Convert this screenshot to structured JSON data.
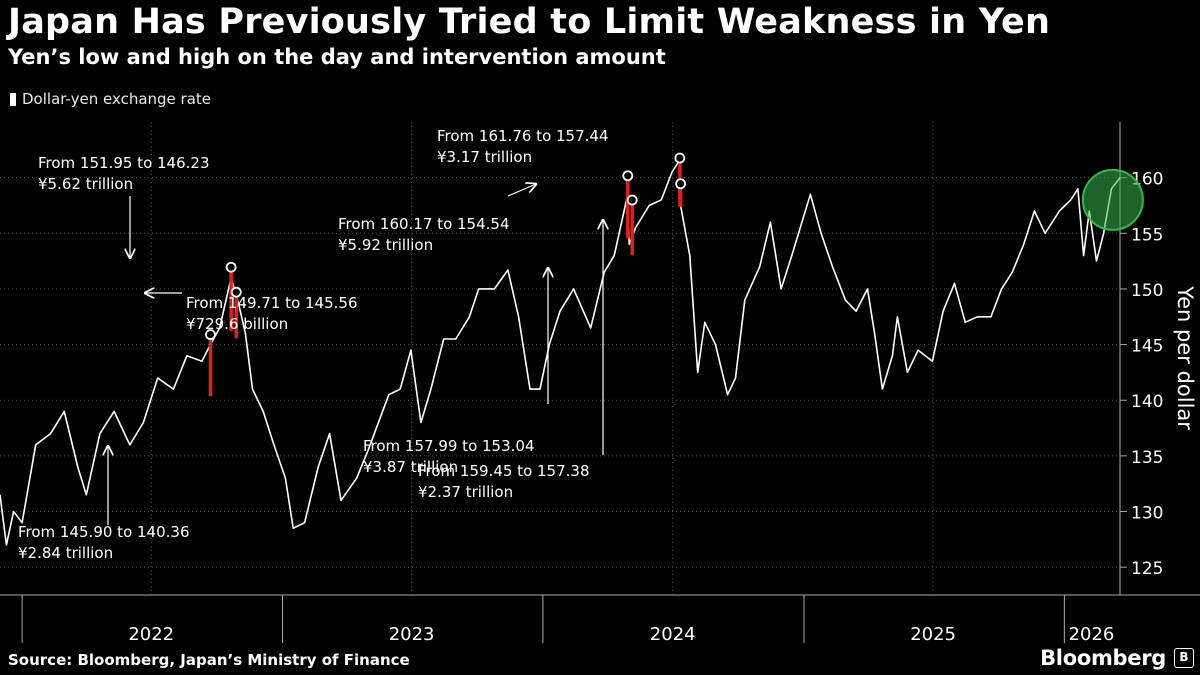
{
  "title": "Japan Has Previously Tried to Limit Weakness in Yen",
  "subtitle": "Yen’s low and high on the day and intervention amount",
  "legend": {
    "label": "Dollar-yen exchange rate",
    "color": "#ffffff"
  },
  "source": "Source: Bloomberg, Japan’s Ministry of Finance",
  "brand": "Bloomberg",
  "colors": {
    "background": "#000000",
    "line": "#ffffff",
    "intervention": "#e0201b",
    "grid": "#555555",
    "highlight": "#39b54a"
  },
  "chart_data": {
    "type": "line",
    "title": "Japan Has Previously Tried to Limit Weakness in Yen",
    "subtitle": "Yen’s low and high on the day and intervention amount",
    "ylabel": "Yen per dollar",
    "ylim": [
      122.5,
      165
    ],
    "y_ticks": [
      125,
      130,
      135,
      140,
      145,
      150,
      155,
      160
    ],
    "y_axis_position": "right",
    "x_range": [
      "2021-12-01",
      "2026-03-20"
    ],
    "x_ticks": [
      "2022",
      "2023",
      "2024",
      "2025",
      "2026"
    ],
    "grid": true,
    "legend_position": "top-left",
    "series": [
      {
        "name": "Dollar-yen exchange rate",
        "points": [
          [
            "2021-12-01",
            131.5
          ],
          [
            "2021-12-10",
            127
          ],
          [
            "2021-12-20",
            130
          ],
          [
            "2022-01-01",
            129
          ],
          [
            "2022-01-20",
            136
          ],
          [
            "2022-02-10",
            137
          ],
          [
            "2022-03-01",
            139
          ],
          [
            "2022-03-20",
            134
          ],
          [
            "2022-04-01",
            131.5
          ],
          [
            "2022-04-20",
            137
          ],
          [
            "2022-05-10",
            139
          ],
          [
            "2022-06-01",
            136
          ],
          [
            "2022-06-20",
            138
          ],
          [
            "2022-07-10",
            142
          ],
          [
            "2022-08-01",
            141
          ],
          [
            "2022-08-20",
            144
          ],
          [
            "2022-09-10",
            143.5
          ],
          [
            "2022-09-22",
            145
          ],
          [
            "2022-10-05",
            146.5
          ],
          [
            "2022-10-21",
            151
          ],
          [
            "2022-11-01",
            148.5
          ],
          [
            "2022-11-10",
            146
          ],
          [
            "2022-11-20",
            141
          ],
          [
            "2022-12-05",
            139
          ],
          [
            "2022-12-20",
            136
          ],
          [
            "2023-01-05",
            133
          ],
          [
            "2023-01-16",
            128.5
          ],
          [
            "2023-02-01",
            129
          ],
          [
            "2023-02-20",
            134
          ],
          [
            "2023-03-08",
            137
          ],
          [
            "2023-03-24",
            131
          ],
          [
            "2023-04-15",
            133
          ],
          [
            "2023-05-01",
            135.5
          ],
          [
            "2023-05-30",
            140.5
          ],
          [
            "2023-06-15",
            141
          ],
          [
            "2023-06-30",
            144.5
          ],
          [
            "2023-07-14",
            138
          ],
          [
            "2023-07-28",
            141
          ],
          [
            "2023-08-15",
            145.5
          ],
          [
            "2023-09-01",
            145.5
          ],
          [
            "2023-09-20",
            147.5
          ],
          [
            "2023-10-03",
            150
          ],
          [
            "2023-10-25",
            150
          ],
          [
            "2023-11-13",
            151.7
          ],
          [
            "2023-11-28",
            147.5
          ],
          [
            "2023-12-14",
            141
          ],
          [
            "2023-12-28",
            141
          ],
          [
            "2024-01-10",
            145
          ],
          [
            "2024-01-25",
            148
          ],
          [
            "2024-02-13",
            150
          ],
          [
            "2024-03-08",
            146.5
          ],
          [
            "2024-03-27",
            151.5
          ],
          [
            "2024-04-10",
            153
          ],
          [
            "2024-04-29",
            158.5
          ],
          [
            "2024-05-01",
            154
          ],
          [
            "2024-05-10",
            155.5
          ],
          [
            "2024-05-29",
            157.5
          ],
          [
            "2024-06-15",
            158
          ],
          [
            "2024-06-30",
            160.5
          ],
          [
            "2024-07-10",
            161.5
          ],
          [
            "2024-07-11",
            159
          ],
          [
            "2024-07-12",
            157.5
          ],
          [
            "2024-07-25",
            153
          ],
          [
            "2024-08-05",
            142.5
          ],
          [
            "2024-08-15",
            147
          ],
          [
            "2024-08-30",
            145
          ],
          [
            "2024-09-16",
            140.5
          ],
          [
            "2024-09-27",
            142
          ],
          [
            "2024-10-10",
            149
          ],
          [
            "2024-10-31",
            152
          ],
          [
            "2024-11-15",
            156
          ],
          [
            "2024-11-30",
            150
          ],
          [
            "2024-12-15",
            153
          ],
          [
            "2025-01-10",
            158.5
          ],
          [
            "2025-01-25",
            155
          ],
          [
            "2025-02-10",
            152
          ],
          [
            "2025-02-28",
            149
          ],
          [
            "2025-03-15",
            148
          ],
          [
            "2025-03-31",
            150
          ],
          [
            "2025-04-10",
            146
          ],
          [
            "2025-04-21",
            141
          ],
          [
            "2025-05-05",
            144
          ],
          [
            "2025-05-12",
            147.5
          ],
          [
            "2025-05-26",
            142.5
          ],
          [
            "2025-06-10",
            144.5
          ],
          [
            "2025-06-30",
            143.5
          ],
          [
            "2025-07-15",
            148
          ],
          [
            "2025-07-31",
            150.5
          ],
          [
            "2025-08-15",
            147
          ],
          [
            "2025-09-01",
            147.5
          ],
          [
            "2025-09-20",
            147.5
          ],
          [
            "2025-10-05",
            150
          ],
          [
            "2025-10-20",
            151.5
          ],
          [
            "2025-11-05",
            154
          ],
          [
            "2025-11-20",
            157
          ],
          [
            "2025-12-05",
            155
          ],
          [
            "2025-12-25",
            157
          ],
          [
            "2026-01-10",
            158
          ],
          [
            "2026-01-20",
            159
          ],
          [
            "2026-01-28",
            153
          ],
          [
            "2026-02-05",
            157
          ],
          [
            "2026-02-15",
            152.5
          ],
          [
            "2026-02-25",
            155
          ],
          [
            "2026-03-08",
            159
          ],
          [
            "2026-03-20",
            160
          ]
        ]
      }
    ],
    "interventions": [
      {
        "date": "2022-09-22",
        "from": 145.9,
        "to": 140.36,
        "amount": "¥2.84 trillion",
        "label_from": "From 145.90 to 140.36",
        "label_amount": "¥2.84 trillion",
        "label_pos": "below-left"
      },
      {
        "date": "2022-10-21",
        "from": 151.95,
        "to": 146.23,
        "amount": "¥5.62 trillion",
        "label_from": "From 151.95 to 146.23",
        "label_amount": "¥5.62 trillion",
        "label_pos": "above"
      },
      {
        "date": "2022-10-24",
        "from": 149.71,
        "to": 145.56,
        "amount": "¥729.6 billion",
        "label_from": "From 149.71 to 145.56",
        "label_amount": "¥729.6 billion",
        "label_pos": "right"
      },
      {
        "date": "2024-04-29",
        "from": 160.17,
        "to": 154.54,
        "amount": "¥5.92 trillion",
        "label_from": "From 160.17 to 154.54",
        "label_amount": "¥5.92 trillion",
        "label_pos": "left"
      },
      {
        "date": "2024-05-01",
        "from": 157.99,
        "to": 153.04,
        "amount": "¥3.87 trillion",
        "label_from": "From 157.99 to 153.04",
        "label_amount": "¥3.87 trillion",
        "label_pos": "below"
      },
      {
        "date": "2024-07-11",
        "from": 161.76,
        "to": 157.44,
        "amount": "¥3.17 trillion",
        "label_from": "From 161.76 to 157.44",
        "label_amount": "¥3.17 trillion",
        "label_pos": "above"
      },
      {
        "date": "2024-07-12",
        "from": 159.45,
        "to": 157.38,
        "amount": "¥2.37 trillion",
        "label_from": "From 159.45 to 157.38",
        "label_amount": "¥2.37 trillion",
        "label_pos": "below"
      }
    ],
    "highlight": {
      "date": "2026-03-10",
      "value": 158,
      "shape": "circle"
    }
  }
}
